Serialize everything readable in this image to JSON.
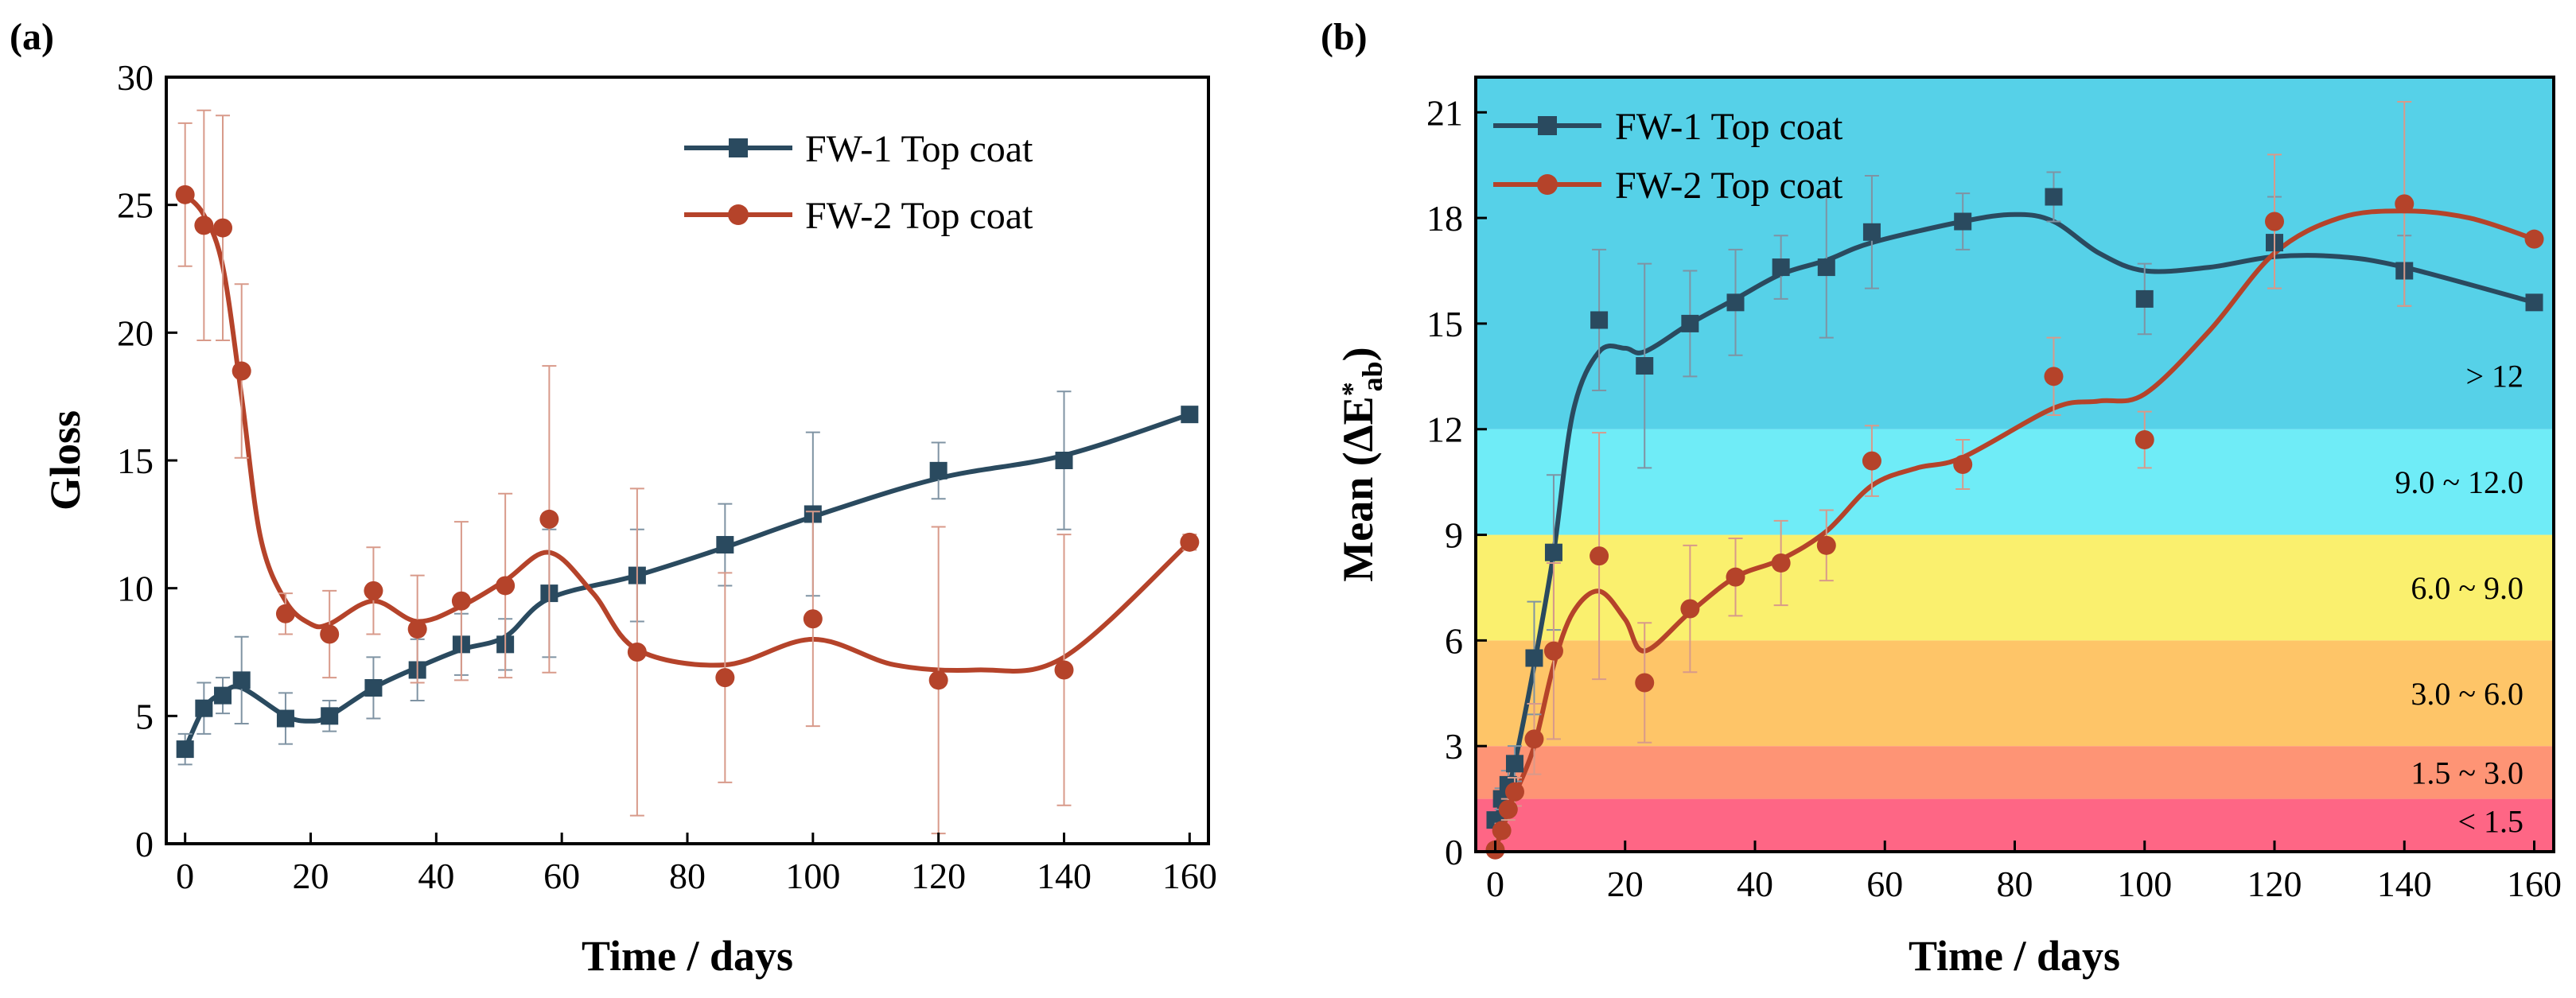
{
  "chart_data": [
    {
      "panel_label": "(a)",
      "type": "line",
      "xlabel": "Time / days",
      "ylabel": "Gloss",
      "xlim": [
        -3,
        163
      ],
      "ylim": [
        0,
        30
      ],
      "xticks": [
        0,
        20,
        40,
        60,
        80,
        100,
        120,
        140,
        160
      ],
      "yticks": [
        0,
        5,
        10,
        15,
        20,
        25,
        30
      ],
      "legend_position": "top-right",
      "series": [
        {
          "name": "FW-1 Top coat",
          "color": "#2a4a5f",
          "marker": "square",
          "x": [
            0,
            3,
            6,
            9,
            16,
            23,
            30,
            37,
            44,
            51,
            58,
            72,
            86,
            100,
            120,
            140,
            160
          ],
          "y": [
            3.7,
            5.3,
            5.8,
            6.4,
            4.9,
            5.0,
            6.1,
            6.8,
            7.8,
            7.8,
            9.8,
            10.5,
            11.7,
            12.9,
            14.6,
            15.0,
            16.8
          ],
          "err": [
            0.6,
            1.0,
            0.7,
            1.7,
            1.0,
            0.6,
            1.2,
            1.2,
            1.2,
            1.0,
            2.5,
            1.8,
            1.6,
            3.2,
            1.1,
            2.7,
            0.3
          ]
        },
        {
          "name": "FW-2 Top coat",
          "color": "#b5432a",
          "marker": "circle",
          "x": [
            0,
            3,
            6,
            9,
            16,
            23,
            30,
            37,
            44,
            51,
            58,
            72,
            86,
            100,
            120,
            140,
            160
          ],
          "y": [
            25.4,
            24.2,
            24.1,
            18.5,
            9.0,
            8.2,
            9.9,
            8.4,
            9.5,
            10.1,
            12.7,
            7.5,
            6.5,
            8.8,
            6.4,
            6.8,
            11.8
          ],
          "err": [
            2.8,
            4.5,
            4.4,
            3.4,
            0.8,
            1.7,
            1.7,
            2.1,
            3.1,
            3.6,
            6.0,
            6.4,
            4.1,
            4.2,
            6.0,
            5.3,
            0.3
          ]
        }
      ],
      "curves": [
        {
          "x": [
            0,
            3,
            6,
            9,
            16,
            20,
            23,
            30,
            37,
            44,
            51,
            58,
            72,
            86,
            100,
            120,
            140,
            160
          ],
          "y": [
            3.7,
            5.3,
            5.9,
            6.1,
            5.0,
            4.8,
            5.0,
            6.1,
            6.9,
            7.6,
            8.1,
            9.6,
            10.5,
            11.6,
            12.8,
            14.3,
            15.2,
            16.8
          ]
        },
        {
          "x": [
            0,
            3,
            6,
            9,
            12,
            16,
            20,
            23,
            30,
            37,
            44,
            51,
            58,
            65,
            72,
            86,
            100,
            113,
            126,
            140,
            160
          ],
          "y": [
            25.4,
            24.6,
            22.6,
            17.5,
            12.0,
            9.5,
            8.6,
            8.6,
            9.5,
            8.7,
            9.3,
            10.3,
            11.4,
            9.8,
            7.6,
            7.0,
            8.0,
            7.0,
            6.8,
            7.3,
            11.8
          ]
        }
      ]
    },
    {
      "panel_label": "(b)",
      "type": "line",
      "xlabel": "Time / days",
      "ylabel_main": "Mean (ΔE",
      "ylabel_sup": "*",
      "ylabel_sub": "ab",
      "ylabel_close": ")",
      "xlim": [
        -3,
        163
      ],
      "ylim": [
        0,
        22
      ],
      "xticks": [
        0,
        20,
        40,
        60,
        80,
        100,
        120,
        140,
        160
      ],
      "yticks": [
        0,
        3,
        6,
        9,
        12,
        15,
        18,
        21
      ],
      "legend_position": "top-left",
      "zones": [
        {
          "from": 0,
          "to": 1.5,
          "label": "< 1.5",
          "color": "#fe6685"
        },
        {
          "from": 1.5,
          "to": 3.0,
          "label": "1.5 ~ 3.0",
          "color": "#fe9475"
        },
        {
          "from": 3.0,
          "to": 6.0,
          "label": "3.0 ~ 6.0",
          "color": "#fec568"
        },
        {
          "from": 6.0,
          "to": 9.0,
          "label": "6.0 ~ 9.0",
          "color": "#faf06e"
        },
        {
          "from": 9.0,
          "to": 12.0,
          "label": "9.0 ~ 12.0",
          "color": "#6fecf7"
        },
        {
          "from": 12.0,
          "to": 22.0,
          "label": "> 12",
          "color": "#56d1e8"
        }
      ],
      "series": [
        {
          "name": "FW-1 Top coat",
          "color": "#2a4a5f",
          "marker": "square",
          "x": [
            0,
            1,
            2,
            3,
            6,
            9,
            16,
            23,
            30,
            37,
            44,
            51,
            58,
            72,
            86,
            100,
            120,
            140,
            160
          ],
          "y": [
            0.9,
            1.5,
            1.9,
            2.5,
            5.5,
            8.5,
            15.1,
            13.8,
            15.0,
            15.6,
            16.6,
            16.6,
            17.6,
            17.9,
            18.6,
            15.7,
            17.3,
            16.5,
            15.6
          ],
          "err": [
            0.2,
            0.3,
            0.4,
            0.5,
            1.6,
            2.2,
            2.0,
            2.9,
            1.5,
            1.5,
            0.9,
            2.0,
            1.6,
            0.8,
            0.7,
            1.0,
            1.3,
            1.0,
            0.1
          ]
        },
        {
          "name": "FW-2 Top coat",
          "color": "#b5432a",
          "marker": "circle",
          "x": [
            0,
            1,
            2,
            3,
            6,
            9,
            16,
            23,
            30,
            37,
            44,
            51,
            58,
            72,
            86,
            100,
            120,
            140,
            160
          ],
          "y": [
            0.05,
            0.6,
            1.2,
            1.7,
            3.2,
            5.7,
            8.4,
            4.8,
            6.9,
            7.8,
            8.2,
            8.7,
            11.1,
            11.0,
            13.5,
            11.7,
            17.9,
            18.4,
            17.4
          ],
          "err": [
            0.05,
            0.2,
            0.3,
            0.4,
            1.0,
            2.5,
            3.5,
            1.7,
            1.8,
            1.1,
            1.2,
            1.0,
            1.0,
            0.7,
            1.1,
            0.8,
            1.9,
            2.9,
            0.1
          ]
        }
      ],
      "curves": [
        {
          "x": [
            0,
            1,
            2,
            3,
            6,
            9,
            12,
            16,
            20,
            23,
            30,
            37,
            44,
            51,
            58,
            72,
            80,
            86,
            93,
            100,
            110,
            120,
            130,
            140,
            160
          ],
          "y": [
            0.9,
            1.4,
            1.9,
            2.5,
            5.3,
            8.5,
            12.5,
            14.2,
            14.3,
            14.2,
            15.0,
            15.7,
            16.4,
            16.8,
            17.3,
            17.9,
            18.1,
            17.9,
            17.0,
            16.5,
            16.6,
            16.9,
            16.9,
            16.6,
            15.6
          ]
        },
        {
          "x": [
            0,
            1,
            2,
            3,
            6,
            9,
            12,
            16,
            20,
            23,
            30,
            37,
            44,
            51,
            58,
            65,
            72,
            86,
            93,
            100,
            110,
            120,
            130,
            140,
            150,
            160
          ],
          "y": [
            0.05,
            0.6,
            1.1,
            1.6,
            3.0,
            5.3,
            6.8,
            7.4,
            6.6,
            5.7,
            6.8,
            7.8,
            8.3,
            9.1,
            10.4,
            10.9,
            11.2,
            12.6,
            12.8,
            13.0,
            14.8,
            17.0,
            18.0,
            18.2,
            18.0,
            17.4
          ]
        }
      ]
    }
  ]
}
